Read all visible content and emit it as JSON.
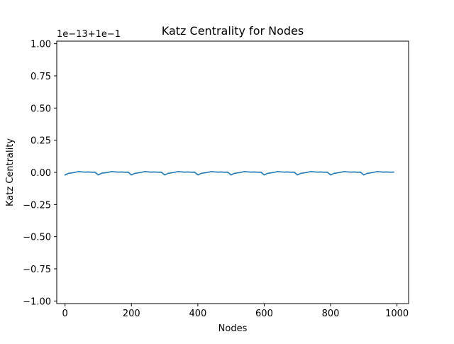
{
  "chart_data": {
    "type": "line",
    "title": "Katz Centrality for Nodes",
    "xlabel": "Nodes",
    "ylabel": "Katz Centrality",
    "offset_text": "1e−13+1e−1",
    "xlim": [
      -25,
      1035
    ],
    "ylim": [
      -1.02,
      1.02
    ],
    "xticks": [
      0,
      200,
      400,
      600,
      800,
      1000
    ],
    "xtick_labels": [
      "0",
      "200",
      "400",
      "600",
      "800",
      "1000"
    ],
    "yticks": [
      -1.0,
      -0.75,
      -0.5,
      -0.25,
      0.0,
      0.25,
      0.5,
      0.75,
      1.0
    ],
    "ytick_labels": [
      "−1.00",
      "−0.75",
      "−0.50",
      "−0.25",
      "0.00",
      "0.25",
      "0.50",
      "0.75",
      "1.00"
    ],
    "grid": false,
    "series": [
      {
        "color": "#1f77b4",
        "x": [
          0,
          10,
          20,
          30,
          40,
          50,
          60,
          70,
          80,
          90,
          100,
          110,
          120,
          130,
          140,
          150,
          160,
          170,
          180,
          190,
          200,
          210,
          220,
          230,
          240,
          250,
          260,
          270,
          280,
          290,
          300,
          310,
          320,
          330,
          340,
          350,
          360,
          370,
          380,
          390,
          400,
          410,
          420,
          430,
          440,
          450,
          460,
          470,
          480,
          490,
          500,
          510,
          520,
          530,
          540,
          550,
          560,
          570,
          580,
          590,
          600,
          610,
          620,
          630,
          640,
          650,
          660,
          670,
          680,
          690,
          700,
          710,
          720,
          730,
          740,
          750,
          760,
          770,
          780,
          790,
          800,
          810,
          820,
          830,
          840,
          850,
          860,
          870,
          880,
          890,
          900,
          910,
          920,
          930,
          940,
          950,
          960,
          970,
          980,
          990
        ],
        "values": [
          -0.02,
          -0.008,
          -0.004,
          0.0,
          0.006,
          0.004,
          0.002,
          0.003,
          0.001,
          0.002,
          -0.02,
          -0.007,
          -0.003,
          0.0,
          0.006,
          0.004,
          0.002,
          0.003,
          0.001,
          0.002,
          -0.02,
          -0.008,
          -0.004,
          0.0,
          0.006,
          0.004,
          0.002,
          0.003,
          0.001,
          0.002,
          -0.02,
          -0.008,
          -0.004,
          0.0,
          0.006,
          0.004,
          0.002,
          0.003,
          0.001,
          0.002,
          -0.02,
          -0.008,
          -0.004,
          0.0,
          0.006,
          0.004,
          0.002,
          0.003,
          0.001,
          0.002,
          -0.02,
          -0.008,
          -0.004,
          0.0,
          0.006,
          0.004,
          0.002,
          0.003,
          0.001,
          0.002,
          -0.02,
          -0.008,
          -0.004,
          0.0,
          0.006,
          0.004,
          0.002,
          0.003,
          0.001,
          0.002,
          -0.02,
          -0.008,
          -0.004,
          0.0,
          0.006,
          0.004,
          0.002,
          0.003,
          0.001,
          0.002,
          -0.02,
          -0.008,
          -0.004,
          0.0,
          0.006,
          0.004,
          0.002,
          0.003,
          0.001,
          0.002,
          -0.02,
          -0.008,
          -0.004,
          0.0,
          0.006,
          0.004,
          0.002,
          0.003,
          0.001,
          0.002
        ]
      }
    ]
  }
}
